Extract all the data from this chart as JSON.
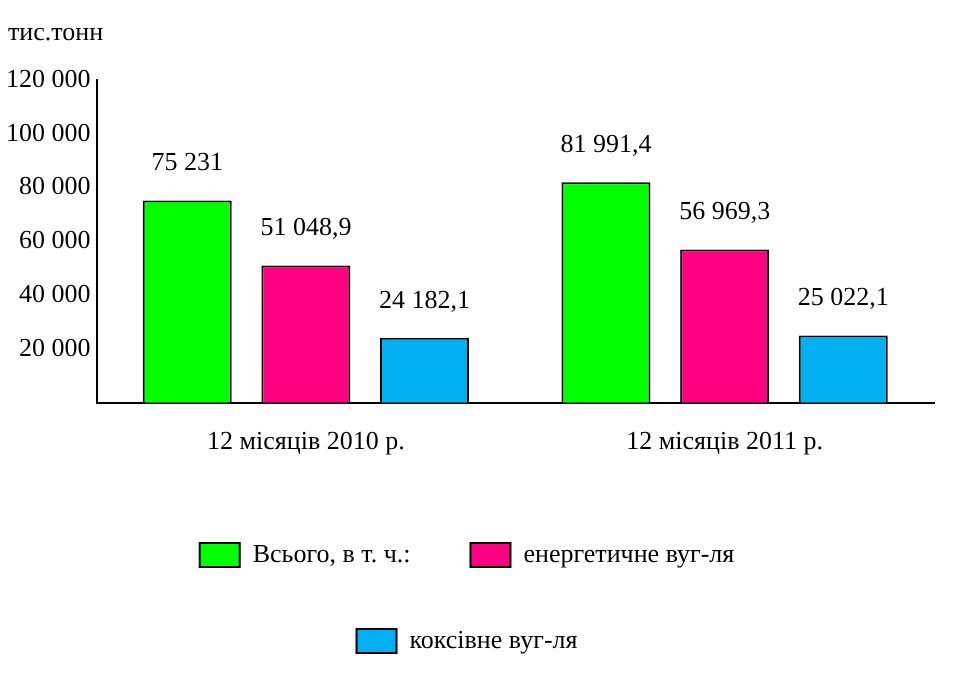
{
  "chart_data": {
    "type": "bar",
    "ylabel": "тис.тонн",
    "categories": [
      "12 місяців 2010 р.",
      "12 місяців 2011 р."
    ],
    "series": [
      {
        "name": "Всього, в т. ч.:",
        "color": "#00ff00",
        "values": [
          75231,
          81991.4
        ],
        "value_labels": [
          "75 231",
          "81 991,4"
        ]
      },
      {
        "name": "енергетичне вуг-ля",
        "color": "#ff0080",
        "values": [
          51048.9,
          56969.3
        ],
        "value_labels": [
          "51 048,9",
          "56 969,3"
        ]
      },
      {
        "name": "коксівне вуг-ля",
        "color": "#00b0f0",
        "values": [
          24182.1,
          25022.1
        ],
        "value_labels": [
          "24 182,1",
          "25 022,1"
        ]
      }
    ],
    "ylim": [
      0,
      120000
    ],
    "yticks": [
      {
        "value": 0,
        "label": null
      },
      {
        "value": 20000,
        "label": "20 000"
      },
      {
        "value": 40000,
        "label": "40 000"
      },
      {
        "value": 60000,
        "label": "60 000"
      },
      {
        "value": 80000,
        "label": "80 000"
      },
      {
        "value": 100000,
        "label": "100 000"
      },
      {
        "value": 120000,
        "label": "120 000"
      }
    ],
    "grid": false,
    "legend": "bottom"
  }
}
